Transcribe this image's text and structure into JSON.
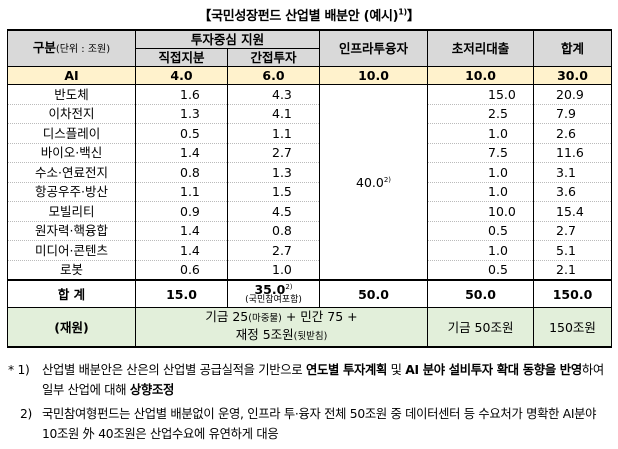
{
  "title": "【국민성장펀드 산업별 배분안 (예시)",
  "title_sup": "1)",
  "title_close": "】",
  "header": {
    "category": "구분",
    "unit": "(단위 : 조원)",
    "investment_support": "투자중심 지원",
    "direct_equity": "직접지분",
    "indirect_investment": "간접투자",
    "infra_investment": "인프라투융자",
    "low_interest_loan": "초저리대출",
    "total": "합계"
  },
  "ai_row": {
    "name": "AI",
    "direct": "4.0",
    "indirect": "6.0",
    "infra": "10.0",
    "loan": "10.0",
    "total": "30.0"
  },
  "rows": [
    {
      "name": "반도체",
      "direct": "1.6",
      "indirect": "4.3",
      "loan": "15.0",
      "total": "20.9"
    },
    {
      "name": "이차전지",
      "direct": "1.3",
      "indirect": "4.1",
      "loan": "2.5",
      "total": "7.9"
    },
    {
      "name": "디스플레이",
      "direct": "0.5",
      "indirect": "1.1",
      "loan": "1.0",
      "total": "2.6"
    },
    {
      "name": "바이오·백신",
      "direct": "1.4",
      "indirect": "2.7",
      "loan": "7.5",
      "total": "11.6"
    },
    {
      "name": "수소·연료전지",
      "direct": "0.8",
      "indirect": "1.3",
      "loan": "1.0",
      "total": "3.1"
    },
    {
      "name": "항공우주·방산",
      "direct": "1.1",
      "indirect": "1.5",
      "loan": "1.0",
      "total": "3.6"
    },
    {
      "name": "모빌리티",
      "direct": "0.9",
      "indirect": "4.5",
      "loan": "10.0",
      "total": "15.4"
    },
    {
      "name": "원자력·핵융합",
      "direct": "1.4",
      "indirect": "0.8",
      "loan": "0.5",
      "total": "2.7"
    },
    {
      "name": "미디어·콘텐츠",
      "direct": "1.4",
      "indirect": "2.7",
      "loan": "1.0",
      "total": "5.1"
    },
    {
      "name": "로봇",
      "direct": "0.6",
      "indirect": "1.0",
      "loan": "0.5",
      "total": "2.1"
    }
  ],
  "infra_merged": {
    "value": "40.0",
    "sup": "2)"
  },
  "total_row": {
    "name": "합 계",
    "direct": "15.0",
    "indirect": "35.0",
    "indirect_sup": "2)",
    "indirect_note": "(국민참여포함)",
    "infra": "50.0",
    "loan": "50.0",
    "total": "150.0"
  },
  "fund_row": {
    "name": "(재원)",
    "src_line1": "기금 25",
    "src_line1_sm": "(마중물)",
    "src_line1_rest": " + 민간 75 +",
    "src_line2": "재정 5조원",
    "src_line2_sm": "(뒷받침)",
    "loan_src": "기금 50조원",
    "total_src": "150조원"
  },
  "notes": {
    "note1_mark": "* 1)",
    "note1_a": "산업별 배분안은 산은의 산업별 공급실적을 기반으로 ",
    "note1_b": "연도별 투자계획",
    "note1_c": " 및 ",
    "note1_d": "AI 분야 설비투자 확대 동향을 반영",
    "note1_e": "하여 일부 산업에 대해 ",
    "note1_f": "상향조정",
    "note2_mark": "2)",
    "note2_text": "국민참여형펀드는 산업별 배분없이 운영, 인프라 투·융자 전체 50조원 중 데이터센터 등 수요처가 명확한 AI분야 10조원 外 40조원은 산업수요에 유연하게 대응"
  }
}
